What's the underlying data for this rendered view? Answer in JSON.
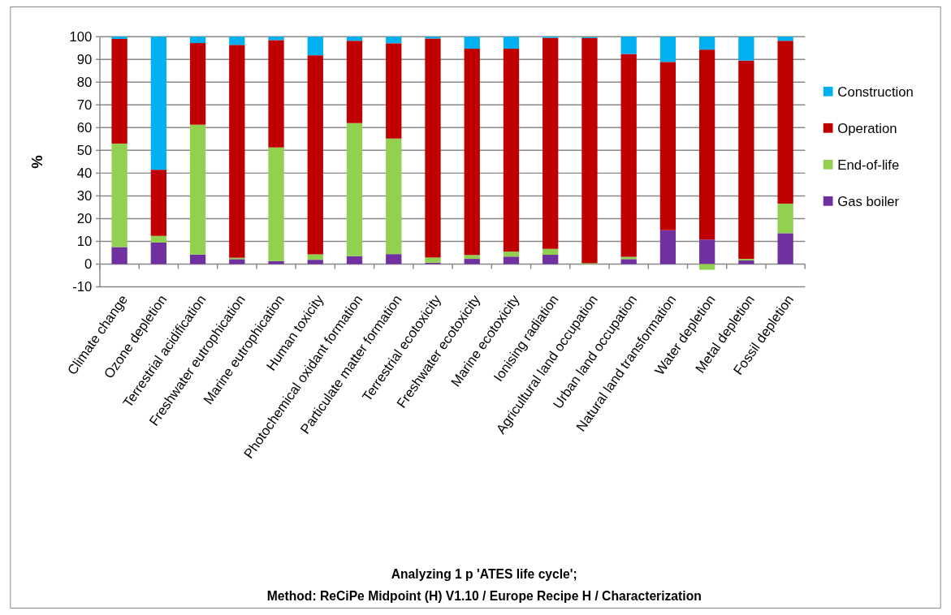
{
  "chart_data": {
    "type": "bar",
    "stacked": true,
    "title": "Analyzing 1 p 'ATES life cycle';",
    "subtitle": "Method: ReCiPe Midpoint (H) V1.10 / Europe Recipe H / Characterization",
    "ylabel": "%",
    "categories": [
      "Climate change",
      "Ozone depletion",
      "Terrestrial acidification",
      "Freshwater eutrophication",
      "Marine eutrophication",
      "Human toxicity",
      "Photochemical oxidant formation",
      "Particulate matter formation",
      "Terrestrial ecotoxicity",
      "Freshwater ecotoxicity",
      "Marine ecotoxicity",
      "Ionising radiation",
      "Agricultural land occupation",
      "Urban land occupation",
      "Natural land transformation",
      "Water depletion",
      "Metal depletion",
      "Fossil depletion"
    ],
    "series": [
      {
        "name": "Gas boiler",
        "color": "#7030a0",
        "values": [
          7.5,
          9.5,
          4.2,
          2.2,
          1.3,
          1.9,
          3.5,
          4.4,
          0.6,
          2.3,
          3.3,
          4.1,
          null,
          2.2,
          14.9,
          10.8,
          1.6,
          13.6
        ]
      },
      {
        "name": "End-of-life",
        "color": "#92d050",
        "values": [
          45.5,
          2.9,
          57.1,
          0.6,
          50,
          2.4,
          58.5,
          50.8,
          2.3,
          1.7,
          2.2,
          2.6,
          0.4,
          1.0,
          0,
          -2.5,
          0.7,
          13
        ]
      },
      {
        "name": "Operation",
        "color": "#c00000",
        "values": [
          46,
          29.1,
          35.9,
          93.6,
          47.2,
          87.5,
          36.2,
          41.9,
          96.3,
          90.7,
          89.2,
          92.8,
          99.0,
          89.2,
          74,
          83.5,
          87.2,
          71.6
        ]
      },
      {
        "name": "Construction",
        "color": "#00b0f0",
        "values": [
          1,
          58.5,
          2.8,
          3.6,
          1.5,
          8.2,
          1.8,
          2.9,
          0.8,
          5.3,
          5.3,
          0.5,
          0.4,
          7.6,
          11.1,
          5.7,
          10.5,
          1.8
        ]
      }
    ],
    "ylim": [
      -10,
      100
    ],
    "yticks": [
      -10,
      0,
      10,
      20,
      30,
      40,
      50,
      60,
      70,
      80,
      90,
      100
    ],
    "grid": "y",
    "legend": "right"
  }
}
